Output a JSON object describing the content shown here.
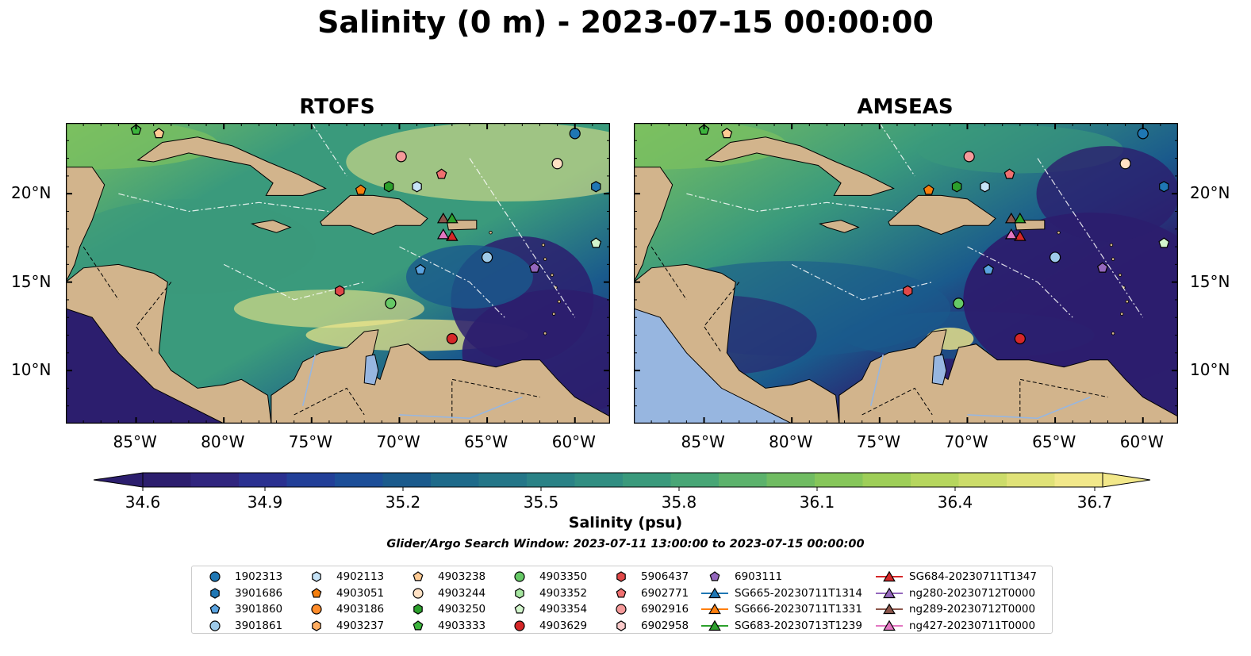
{
  "title": "Salinity (0 m) - 2023-07-15 00:00:00",
  "panels": [
    {
      "name": "RTOFS"
    },
    {
      "name": "AMSEAS"
    }
  ],
  "axes": {
    "lon_ticks": [
      "85°W",
      "80°W",
      "75°W",
      "70°W",
      "65°W",
      "60°W"
    ],
    "lat_ticks": [
      "20°N",
      "15°N",
      "10°N"
    ],
    "lon_range": [
      -89,
      -58
    ],
    "lat_range": [
      7,
      24
    ]
  },
  "colorbar": {
    "label": "Salinity (psu)",
    "ticks": [
      "34.6",
      "34.9",
      "35.2",
      "35.5",
      "35.8",
      "36.1",
      "36.4",
      "36.7"
    ],
    "colors": {
      "low": "#2c1e6e",
      "mid_low": "#1a5a8c",
      "mid": "#3a9a7c",
      "mid_high": "#7cc160",
      "high": "#f2e88a"
    },
    "land": "#d2b48c",
    "lake": "#97b6e0"
  },
  "search_window": "Glider/Argo Search Window: 2023-07-11 13:00:00 to 2023-07-15 00:00:00",
  "legend": [
    {
      "label": "1902313",
      "marker": "circle",
      "color": "#1f77b4"
    },
    {
      "label": "3901686",
      "marker": "hexagon",
      "color": "#1f77b4"
    },
    {
      "label": "3901860",
      "marker": "pentagon",
      "color": "#5aa3e0"
    },
    {
      "label": "3901861",
      "marker": "circle",
      "color": "#9ecae9"
    },
    {
      "label": "4902113",
      "marker": "hexagon",
      "color": "#c6e3f7"
    },
    {
      "label": "4903051",
      "marker": "pentagon",
      "color": "#f57f0e"
    },
    {
      "label": "4903186",
      "marker": "circle",
      "color": "#ff8c2a"
    },
    {
      "label": "4903237",
      "marker": "hexagon",
      "color": "#ffad61"
    },
    {
      "label": "4903238",
      "marker": "pentagon",
      "color": "#ffcb94"
    },
    {
      "label": "4903244",
      "marker": "circle",
      "color": "#ffe1c4"
    },
    {
      "label": "4903250",
      "marker": "hexagon",
      "color": "#2ca02c"
    },
    {
      "label": "4903333",
      "marker": "pentagon",
      "color": "#3cb43c"
    },
    {
      "label": "4903350",
      "marker": "circle",
      "color": "#66c966"
    },
    {
      "label": "4903352",
      "marker": "hexagon",
      "color": "#a6e6a0"
    },
    {
      "label": "4903354",
      "marker": "pentagon",
      "color": "#d2f5cc"
    },
    {
      "label": "4903629",
      "marker": "circle",
      "color": "#d62728"
    },
    {
      "label": "5906437",
      "marker": "hexagon",
      "color": "#e04848"
    },
    {
      "label": "6902771",
      "marker": "pentagon",
      "color": "#f07070"
    },
    {
      "label": "6902916",
      "marker": "circle",
      "color": "#f59a9a"
    },
    {
      "label": "6902958",
      "marker": "hexagon",
      "color": "#fbcaca"
    },
    {
      "label": "6903111",
      "marker": "pentagon",
      "color": "#9467bd"
    },
    {
      "label": "SG665-20230711T1314",
      "marker": "triangle-line",
      "color": "#1f77b4"
    },
    {
      "label": "SG666-20230711T1331",
      "marker": "triangle-line",
      "color": "#ff7f0e"
    },
    {
      "label": "SG683-20230713T1239",
      "marker": "triangle-line",
      "color": "#2ca02c"
    },
    {
      "label": "SG684-20230711T1347",
      "marker": "triangle-line",
      "color": "#d62728"
    },
    {
      "label": "ng280-20230712T0000",
      "marker": "triangle-line",
      "color": "#9467bd"
    },
    {
      "label": "ng289-20230712T0000",
      "marker": "triangle-line",
      "color": "#8c564b"
    },
    {
      "label": "ng427-20230711T0000",
      "marker": "triangle-line",
      "color": "#e377c2"
    }
  ],
  "observations": [
    {
      "id": "1902313",
      "lon": -60.0,
      "lat": 23.4
    },
    {
      "id": "3901686",
      "lon": -58.8,
      "lat": 20.4
    },
    {
      "id": "3901860",
      "lon": -68.8,
      "lat": 15.7
    },
    {
      "id": "3901861",
      "lon": -65.0,
      "lat": 16.4
    },
    {
      "id": "4902113",
      "lon": -69.0,
      "lat": 20.4
    },
    {
      "id": "4903051",
      "lon": -72.2,
      "lat": 20.2
    },
    {
      "id": "4903238",
      "lon": -83.7,
      "lat": 23.4
    },
    {
      "id": "4903244",
      "lon": -61.0,
      "lat": 21.7
    },
    {
      "id": "4903250",
      "lon": -70.6,
      "lat": 20.4
    },
    {
      "id": "4903333",
      "lon": -85.0,
      "lat": 23.6
    },
    {
      "id": "4903350",
      "lon": -70.5,
      "lat": 13.8
    },
    {
      "id": "4903354",
      "lon": -58.8,
      "lat": 17.2
    },
    {
      "id": "4903629",
      "lon": -67.0,
      "lat": 11.8
    },
    {
      "id": "5906437",
      "lon": -73.4,
      "lat": 14.5
    },
    {
      "id": "6902771",
      "lon": -67.6,
      "lat": 21.1
    },
    {
      "id": "6902916",
      "lon": -69.9,
      "lat": 22.1
    },
    {
      "id": "6903111",
      "lon": -62.3,
      "lat": 15.8
    },
    {
      "id": "SG684-20230711T1347",
      "lon": -67.0,
      "lat": 17.6
    },
    {
      "id": "ng289-20230712T0000",
      "lon": -67.5,
      "lat": 18.6
    },
    {
      "id": "SG683-20230713T1239",
      "lon": -67.0,
      "lat": 18.6
    },
    {
      "id": "ng427-20230711T0000",
      "lon": -67.5,
      "lat": 17.7
    }
  ]
}
